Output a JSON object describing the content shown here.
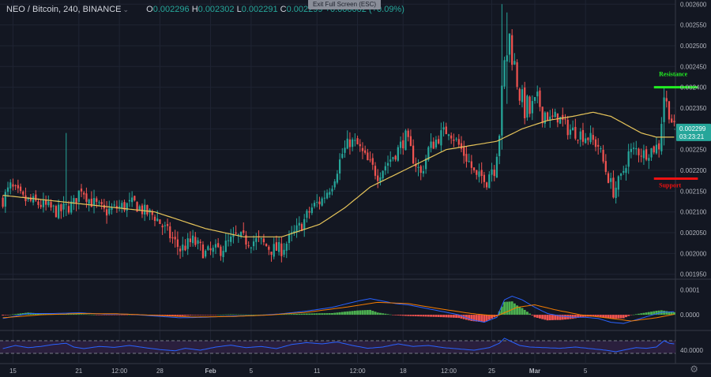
{
  "header": {
    "symbol": "NEO / Bitcoin, 240, BINANCE",
    "o_label": "O",
    "o_value": "0.002296",
    "h_label": "H",
    "h_value": "0.002302",
    "l_label": "L",
    "l_value": "0.002291",
    "c_label": "C",
    "c_value": "0.002299",
    "change": "+0.000002 (+0.09%)"
  },
  "exit_fullscreen": "Exit Full Screen (ESC)",
  "colors": {
    "background": "#131722",
    "up": "#26a69a",
    "down": "#ef5350",
    "ma": "#e6c45a",
    "macd_line": "#2962ff",
    "signal_line": "#f57c00",
    "hist_up": "#4caf50",
    "hist_down": "#ef5350",
    "rsi_line": "#2962ff",
    "rsi_band": "#2a1f3d",
    "resistance": "#22ee22",
    "support": "#ee1111",
    "price_tag": "#26a69a"
  },
  "chart_data": [
    {
      "type": "candlestick",
      "title": "NEO / Bitcoin, 240, BINANCE",
      "ylim": [
        0.00194,
        0.00261
      ],
      "y_ticks": [
        "0.002600",
        "0.002550",
        "0.002500",
        "0.002450",
        "0.002400",
        "0.002350",
        "0.002300",
        "0.002250",
        "0.002200",
        "0.002150",
        "0.002100",
        "0.002050",
        "0.002000",
        "0.001950"
      ],
      "x_ticks": [
        "15",
        "21",
        "12:00",
        "28",
        "Feb",
        "5",
        "11",
        "12:00",
        "18",
        "12:00",
        "25",
        "Mar",
        "5"
      ],
      "close_path": [
        [
          0,
          0.00213
        ],
        [
          3,
          0.00216
        ],
        [
          8,
          0.00213
        ],
        [
          14,
          0.00212
        ],
        [
          18,
          0.00211
        ],
        [
          22,
          0.0021
        ],
        [
          28,
          0.00212
        ],
        [
          31,
          0.00216
        ],
        [
          34,
          0.00213
        ],
        [
          40,
          0.0021
        ],
        [
          45,
          0.00211
        ],
        [
          52,
          0.00212
        ],
        [
          56,
          0.0021
        ],
        [
          60,
          0.00209
        ],
        [
          65,
          0.00205
        ],
        [
          70,
          0.00201
        ],
        [
          75,
          0.00203
        ],
        [
          80,
          0.002
        ],
        [
          86,
          0.00201
        ],
        [
          92,
          0.00204
        ],
        [
          97,
          0.00203
        ],
        [
          101,
          0.00203
        ],
        [
          106,
          0.00201
        ],
        [
          110,
          0.00201
        ],
        [
          114,
          0.00204
        ],
        [
          118,
          0.00207
        ],
        [
          122,
          0.00211
        ],
        [
          126,
          0.00213
        ],
        [
          130,
          0.00217
        ],
        [
          134,
          0.00224
        ],
        [
          137,
          0.00227
        ],
        [
          140,
          0.00226
        ],
        [
          144,
          0.00222
        ],
        [
          148,
          0.00219
        ],
        [
          152,
          0.00222
        ],
        [
          156,
          0.00225
        ],
        [
          159,
          0.00228
        ],
        [
          162,
          0.00223
        ],
        [
          165,
          0.00219
        ],
        [
          168,
          0.00225
        ],
        [
          172,
          0.00228
        ],
        [
          176,
          0.0023
        ],
        [
          180,
          0.00226
        ],
        [
          184,
          0.00222
        ],
        [
          187,
          0.00218
        ],
        [
          191,
          0.00219
        ],
        [
          194,
          0.00222
        ],
        [
          196,
          0.0023
        ],
        [
          198,
          0.00245
        ],
        [
          200,
          0.00252
        ],
        [
          202,
          0.00245
        ],
        [
          205,
          0.00236
        ],
        [
          208,
          0.00234
        ],
        [
          212,
          0.00236
        ],
        [
          216,
          0.00232
        ],
        [
          219,
          0.00233
        ],
        [
          223,
          0.0023
        ],
        [
          227,
          0.00229
        ],
        [
          231,
          0.00228
        ],
        [
          235,
          0.00226
        ],
        [
          238,
          0.0022
        ],
        [
          241,
          0.00215
        ],
        [
          244,
          0.00218
        ],
        [
          247,
          0.00224
        ],
        [
          250,
          0.00225
        ],
        [
          253,
          0.00224
        ],
        [
          256,
          0.00225
        ],
        [
          259,
          0.00226
        ],
        [
          261,
          0.00238
        ],
        [
          263,
          0.00234
        ],
        [
          265,
          0.0023
        ]
      ],
      "moving_average_path": [
        [
          0,
          0.00214
        ],
        [
          30,
          0.00212
        ],
        [
          60,
          0.0021
        ],
        [
          80,
          0.00206
        ],
        [
          95,
          0.00204
        ],
        [
          110,
          0.00204
        ],
        [
          125,
          0.00207
        ],
        [
          135,
          0.00211
        ],
        [
          145,
          0.00216
        ],
        [
          155,
          0.00219
        ],
        [
          165,
          0.00222
        ],
        [
          175,
          0.00225
        ],
        [
          185,
          0.00226
        ],
        [
          195,
          0.00227
        ],
        [
          205,
          0.0023
        ],
        [
          215,
          0.00232
        ],
        [
          225,
          0.00233
        ],
        [
          233,
          0.00234
        ],
        [
          240,
          0.00233
        ],
        [
          246,
          0.00231
        ],
        [
          252,
          0.00229
        ],
        [
          258,
          0.00228
        ],
        [
          265,
          0.00228
        ]
      ],
      "spikes": [
        {
          "index": 25,
          "high": 0.00229,
          "low": 0.00209
        },
        {
          "index": 197,
          "high": 0.0026,
          "low": 0.00225
        },
        {
          "index": 199,
          "high": 0.00258,
          "low": 0.00236
        },
        {
          "index": 261,
          "high": 0.0024,
          "low": 0.00226
        }
      ],
      "last_price": "0.002299",
      "countdown": "03:23:21",
      "annotations": [
        {
          "label": "Resistance",
          "value": 0.0024
        },
        {
          "label": "Support",
          "value": 0.00218
        }
      ]
    },
    {
      "type": "macd",
      "y_ticks": [
        "0.0001",
        "0.0000"
      ],
      "ylim": [
        -6e-05,
        0.00014
      ],
      "macd_path": [
        [
          0,
          -1.5e-05
        ],
        [
          10,
          5e-06
        ],
        [
          20,
          5e-06
        ],
        [
          30,
          8e-06
        ],
        [
          40,
          3e-06
        ],
        [
          50,
          2e-06
        ],
        [
          60,
          -5e-06
        ],
        [
          70,
          -1.2e-05
        ],
        [
          80,
          -1e-05
        ],
        [
          90,
          -5e-06
        ],
        [
          100,
          -3e-06
        ],
        [
          110,
          4e-06
        ],
        [
          120,
          1.5e-05
        ],
        [
          130,
          3e-05
        ],
        [
          140,
          5.5e-05
        ],
        [
          145,
          6.5e-05
        ],
        [
          150,
          5.5e-05
        ],
        [
          155,
          4.5e-05
        ],
        [
          160,
          4e-05
        ],
        [
          165,
          3e-05
        ],
        [
          170,
          2e-05
        ],
        [
          175,
          1e-05
        ],
        [
          180,
          0.0
        ],
        [
          185,
          -2e-05
        ],
        [
          190,
          -3e-05
        ],
        [
          195,
          -1e-05
        ],
        [
          198,
          6e-05
        ],
        [
          201,
          7.5e-05
        ],
        [
          205,
          6e-05
        ],
        [
          210,
          3e-05
        ],
        [
          215,
          5e-06
        ],
        [
          220,
          -5e-06
        ],
        [
          225,
          -1e-05
        ],
        [
          230,
          -1e-05
        ],
        [
          235,
          -1.5e-05
        ],
        [
          240,
          -3e-05
        ],
        [
          245,
          -3.5e-05
        ],
        [
          250,
          -2e-05
        ],
        [
          255,
          -5e-06
        ],
        [
          260,
          1e-05
        ],
        [
          265,
          1.2e-05
        ]
      ],
      "signal_path": [
        [
          0,
          -1.2e-05
        ],
        [
          15,
          0.0
        ],
        [
          30,
          5e-06
        ],
        [
          45,
          4e-06
        ],
        [
          60,
          -2e-06
        ],
        [
          75,
          -9e-06
        ],
        [
          90,
          -7e-06
        ],
        [
          105,
          -1e-06
        ],
        [
          120,
          1e-05
        ],
        [
          135,
          3e-05
        ],
        [
          148,
          5e-05
        ],
        [
          160,
          4.5e-05
        ],
        [
          172,
          2.5e-05
        ],
        [
          185,
          5e-06
        ],
        [
          195,
          -5e-06
        ],
        [
          203,
          3e-05
        ],
        [
          210,
          4e-05
        ],
        [
          218,
          2e-05
        ],
        [
          228,
          0.0
        ],
        [
          238,
          -1.2e-05
        ],
        [
          248,
          -2.5e-05
        ],
        [
          258,
          -1.2e-05
        ],
        [
          265,
          2e-06
        ]
      ]
    },
    {
      "type": "rsi",
      "y_ticks": [
        "40.0000"
      ],
      "ylim": [
        0,
        100
      ],
      "band": [
        30,
        70
      ],
      "rsi_path": [
        [
          0,
          45
        ],
        [
          5,
          55
        ],
        [
          10,
          48
        ],
        [
          15,
          52
        ],
        [
          20,
          58
        ],
        [
          25,
          62
        ],
        [
          28,
          50
        ],
        [
          32,
          45
        ],
        [
          38,
          52
        ],
        [
          44,
          49
        ],
        [
          50,
          55
        ],
        [
          56,
          48
        ],
        [
          62,
          42
        ],
        [
          68,
          38
        ],
        [
          72,
          46
        ],
        [
          78,
          40
        ],
        [
          84,
          50
        ],
        [
          90,
          56
        ],
        [
          96,
          48
        ],
        [
          102,
          52
        ],
        [
          108,
          45
        ],
        [
          114,
          58
        ],
        [
          120,
          64
        ],
        [
          126,
          60
        ],
        [
          132,
          66
        ],
        [
          138,
          55
        ],
        [
          144,
          46
        ],
        [
          150,
          50
        ],
        [
          156,
          60
        ],
        [
          162,
          52
        ],
        [
          168,
          55
        ],
        [
          174,
          48
        ],
        [
          180,
          44
        ],
        [
          186,
          40
        ],
        [
          192,
          48
        ],
        [
          196,
          62
        ],
        [
          198,
          78
        ],
        [
          200,
          70
        ],
        [
          204,
          55
        ],
        [
          208,
          50
        ],
        [
          214,
          48
        ],
        [
          220,
          46
        ],
        [
          226,
          50
        ],
        [
          232,
          45
        ],
        [
          238,
          40
        ],
        [
          242,
          35
        ],
        [
          246,
          42
        ],
        [
          250,
          48
        ],
        [
          254,
          46
        ],
        [
          258,
          50
        ],
        [
          261,
          70
        ],
        [
          263,
          62
        ],
        [
          265,
          60
        ]
      ]
    }
  ]
}
